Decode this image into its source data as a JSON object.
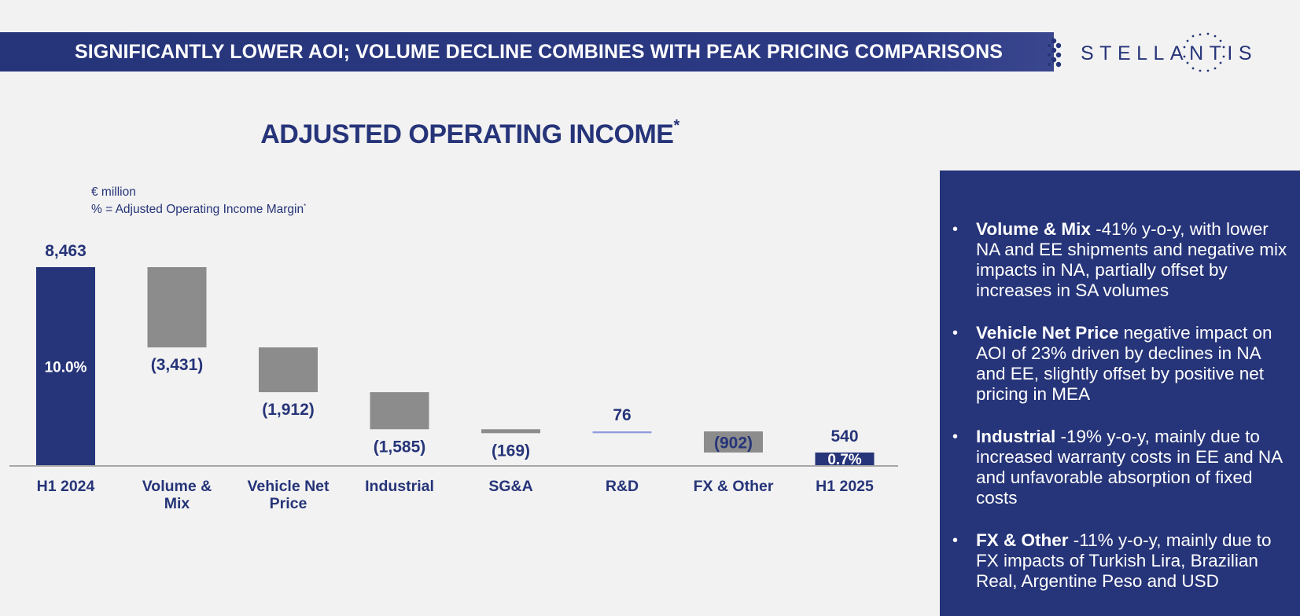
{
  "header": {
    "title": "SIGNIFICANTLY LOWER AOI; VOLUME DECLINE COMBINES WITH PEAK PRICING COMPARISONS",
    "brand": "STELLANTIS"
  },
  "chart_title": "ADJUSTED OPERATING INCOME",
  "chart_title_mark": "*",
  "units_line1": "€ million",
  "units_line2": "% = Adjusted Operating Income Margin",
  "units_mark": "*",
  "chart_data": {
    "type": "bar",
    "subtype": "waterfall",
    "title": "ADJUSTED OPERATING INCOME",
    "unit": "€ million",
    "categories": [
      "H1 2024",
      "Volume & Mix",
      "Vehicle Net Price",
      "Industrial",
      "SG&A",
      "R&D",
      "FX & Other",
      "H1 2025"
    ],
    "category_lines": [
      [
        "H1 2024"
      ],
      [
        "Volume &",
        "Mix"
      ],
      [
        "Vehicle Net",
        "Price"
      ],
      [
        "Industrial"
      ],
      [
        "SG&A"
      ],
      [
        "R&D"
      ],
      [
        "FX & Other"
      ],
      [
        "H1 2025"
      ]
    ],
    "values": [
      8463,
      -3431,
      -1912,
      -1585,
      -169,
      76,
      -902,
      540
    ],
    "kinds": [
      "total",
      "delta",
      "delta",
      "delta",
      "delta",
      "delta",
      "delta",
      "total"
    ],
    "value_labels": [
      "8,463",
      "(3,431)",
      "(1,912)",
      "(1,585)",
      "(169)",
      "76",
      "(902)",
      "540"
    ],
    "margin_labels": {
      "H1 2024": "10.0%",
      "H1 2025": "0.7%"
    },
    "colors": {
      "total": "#263479",
      "decrease": "#8c8c8c",
      "increase": "#8f9bdc",
      "text": "#263479"
    }
  },
  "panel": {
    "bullets": [
      {
        "bold": "Volume & Mix",
        "text": " -41% y-o-y, with lower NA and EE shipments and negative mix impacts in NA, partially offset by increases in SA volumes"
      },
      {
        "bold": "Vehicle Net Price",
        "text": " negative impact on AOI of 23% driven by declines in NA and EE, slightly offset by positive net pricing in MEA"
      },
      {
        "bold": "Industrial",
        "text": " -19% y-o-y, mainly due to increased warranty costs in EE and NA and unfavorable absorption of fixed costs"
      },
      {
        "bold": "FX & Other",
        "text": " -11% y-o-y, mainly due to FX impacts of Turkish Lira, Brazilian Real, Argentine Peso and USD"
      }
    ]
  }
}
